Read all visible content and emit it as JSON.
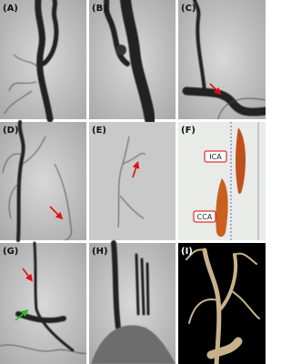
{
  "panels": [
    {
      "label": "(A)"
    },
    {
      "label": "(B)"
    },
    {
      "label": "(C)"
    },
    {
      "label": "(D)"
    },
    {
      "label": "(E)"
    },
    {
      "label": "(F)"
    },
    {
      "label": "(G)"
    },
    {
      "label": "(H)"
    },
    {
      "label": "(I)"
    }
  ],
  "specimen_labels": {
    "ica": "ICA",
    "cca": "CCA"
  }
}
